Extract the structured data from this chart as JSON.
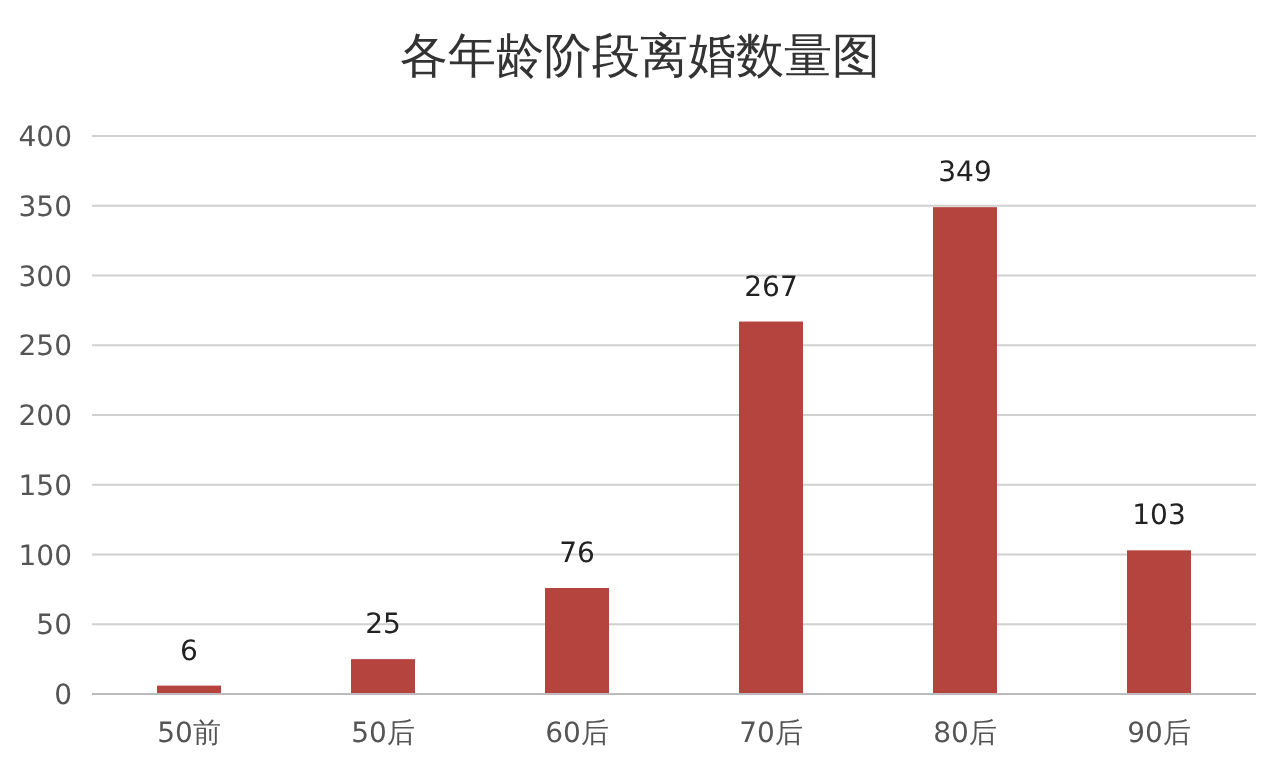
{
  "chart_data": {
    "type": "bar",
    "title": "各年龄阶段离婚数量图",
    "categories": [
      "50前",
      "50后",
      "60后",
      "70后",
      "80后",
      "90后"
    ],
    "values": [
      6,
      25,
      76,
      267,
      349,
      103
    ],
    "color": "#b5443f",
    "ylim": [
      0,
      400
    ],
    "yticks": [
      0,
      50,
      100,
      150,
      200,
      250,
      300,
      350,
      400
    ],
    "grid": "y",
    "data_labels": true
  }
}
